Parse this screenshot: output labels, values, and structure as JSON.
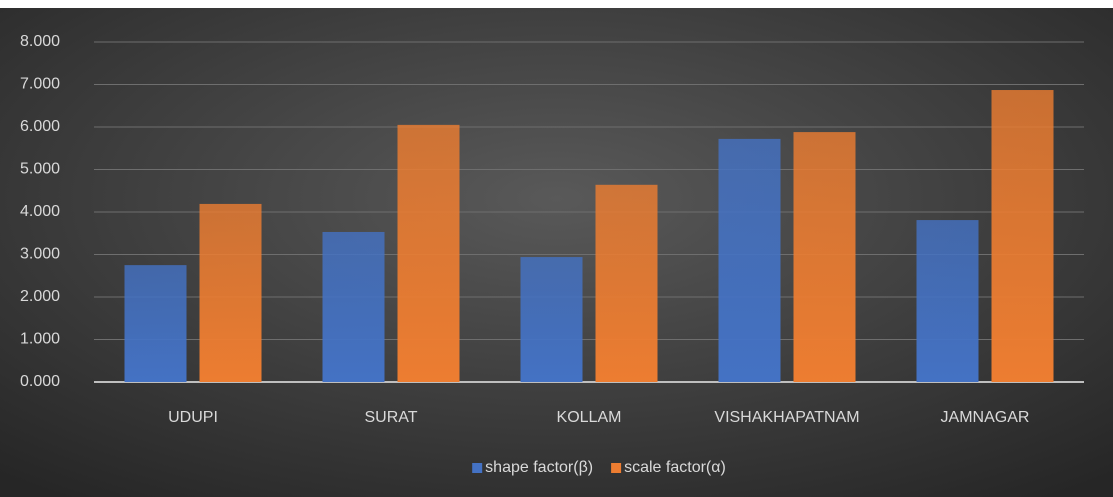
{
  "chart_data": {
    "type": "bar",
    "categories": [
      "UDUPI",
      "SURAT",
      "KOLLAM",
      "VISHAKHAPATNAM",
      "JAMNAGAR"
    ],
    "series": [
      {
        "name": "shape factor(β)",
        "color": "#4472c4",
        "values": [
          2.75,
          3.53,
          2.94,
          5.72,
          3.81
        ]
      },
      {
        "name": "scale factor(α)",
        "color": "#ed7d31",
        "values": [
          4.19,
          6.05,
          4.64,
          5.88,
          6.87
        ]
      }
    ],
    "ylim": [
      0,
      8
    ],
    "yticks": [
      {
        "value": 0,
        "label": "0.000"
      },
      {
        "value": 1,
        "label": "1.000"
      },
      {
        "value": 2,
        "label": "2.000"
      },
      {
        "value": 3,
        "label": "3.000"
      },
      {
        "value": 4,
        "label": "4.000"
      },
      {
        "value": 5,
        "label": "5.000"
      },
      {
        "value": 6,
        "label": "6.000"
      },
      {
        "value": 7,
        "label": "7.000"
      },
      {
        "value": 8,
        "label": "8.000"
      }
    ],
    "grid": true,
    "legend": "bottom"
  }
}
